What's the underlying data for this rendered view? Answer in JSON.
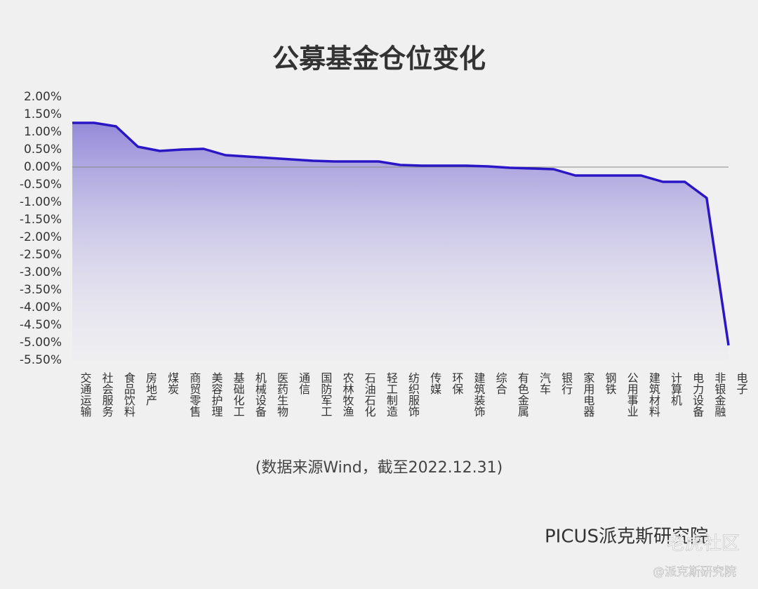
{
  "chart_data": {
    "type": "line",
    "title": "公募基金仓位变化",
    "note": "(数据来源Wind，截至2022.12.31)",
    "brand": "PICUS派克斯研究院",
    "watermark": "老虎社区",
    "credit": "@派克斯研究院",
    "categories": [
      "交通运输",
      "社会服务",
      "食品饮料",
      "房地产",
      "煤炭",
      "商贸零售",
      "美容护理",
      "基础化工",
      "机械设备",
      "医药生物",
      "通信",
      "国防军工",
      "农林牧渔",
      "石油石化",
      "轻工制造",
      "纺织服饰",
      "传媒",
      "环保",
      "建筑装饰",
      "综合",
      "有色金属",
      "汽车",
      "银行",
      "家用电器",
      "钢铁",
      "公用事业",
      "建筑材料",
      "计算机",
      "电力设备",
      "非银金融",
      "电子"
    ],
    "values": [
      1.26,
      1.26,
      1.16,
      0.58,
      0.46,
      0.5,
      0.52,
      0.34,
      0.3,
      0.26,
      0.22,
      0.18,
      0.16,
      0.16,
      0.16,
      0.06,
      0.04,
      0.04,
      0.04,
      0.02,
      -0.02,
      -0.04,
      -0.06,
      -0.24,
      -0.24,
      -0.24,
      -0.24,
      -0.42,
      -0.42,
      -0.88,
      -5.08
    ],
    "color": "#2a16c4",
    "ylim": [
      -5.5,
      2
    ],
    "yticks": [
      {
        "value": 2,
        "label": "2.00%"
      },
      {
        "value": 1.5,
        "label": "1.50%"
      },
      {
        "value": 1,
        "label": "1.00%"
      },
      {
        "value": 0.5,
        "label": "0.50%"
      },
      {
        "value": 0,
        "label": "0.00%"
      },
      {
        "value": -0.5,
        "label": "-0.50%"
      },
      {
        "value": -1,
        "label": "-1.00%"
      },
      {
        "value": -1.5,
        "label": "-1.50%"
      },
      {
        "value": -2,
        "label": "-2.00%"
      },
      {
        "value": -2.5,
        "label": "-2.50%"
      },
      {
        "value": -3,
        "label": "-3.00%"
      },
      {
        "value": -3.5,
        "label": "-3.50%"
      },
      {
        "value": -4,
        "label": "-4.00%"
      },
      {
        "value": -4.5,
        "label": "-4.50%"
      },
      {
        "value": -5,
        "label": "-5.00%"
      },
      {
        "value": -5.5,
        "label": "-5.50%"
      }
    ]
  }
}
